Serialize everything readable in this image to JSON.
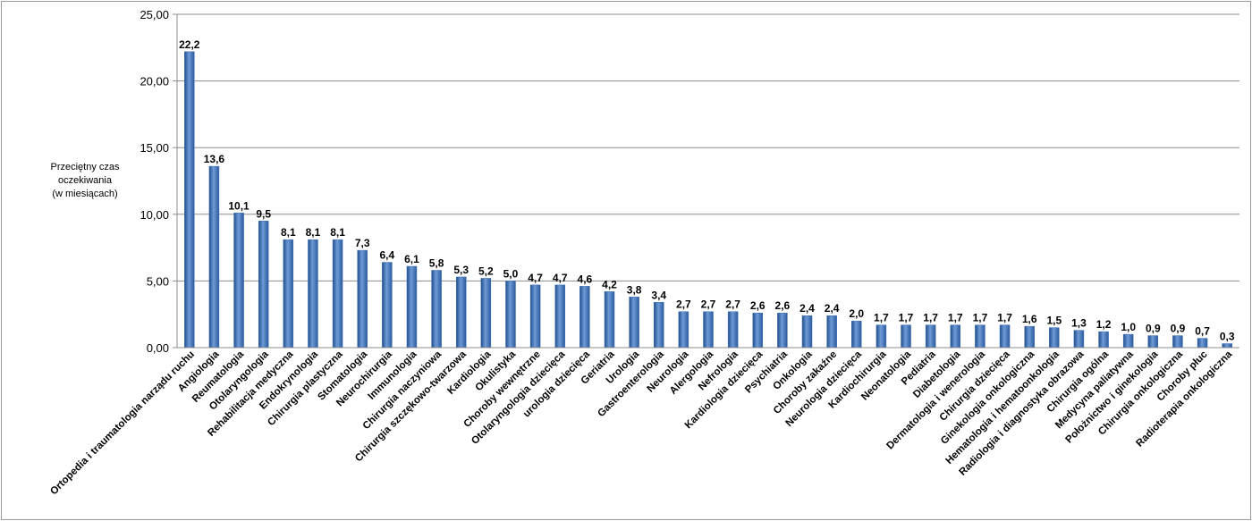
{
  "chart_data": {
    "type": "bar",
    "title": "",
    "xlabel": "",
    "ylabel_lines": [
      "Przeciętny czas",
      "oczekiwania",
      "(w miesiącach)"
    ],
    "ylim": [
      0,
      25
    ],
    "yticks": [
      "0,00",
      "5,00",
      "10,00",
      "15,00",
      "20,00",
      "25,00"
    ],
    "grid": true,
    "legend": "none",
    "bar_color": "#3f6fb5",
    "categories": [
      "Ortopedia i traumatologia narządu ruchu",
      "Angiologia",
      "Reumatologia",
      "Otolaryngologia",
      "Rehabilitacja medyczna",
      "Endokrynologia",
      "Chirurgia plastyczna",
      "Stomatologia",
      "Neurochirurgia",
      "Immunologia",
      "Chirurgia naczyniowa",
      "Chirurgia szczękowo-twarzowa",
      "Kardiologia",
      "Okulistyka",
      "Choroby wewnętrzne",
      "Otolaryngologia dziecięca",
      "urologia dziecięca",
      "Geriatria",
      "Urologia",
      "Gastroenterologia",
      "Neurologia",
      "Alergologia",
      "Nefrologia",
      "Kardiologia dziecięca",
      "Psychiatria",
      "Onkologia",
      "Choroby zakaźne",
      "Neurologia dziecięca",
      "Kardiochirurgia",
      "Neonatologia",
      "Pediatria",
      "Diabetologia",
      "Dermatologia i wenerologia",
      "Chirurgia dziecięca",
      "Ginekologia onkologiczna",
      "Hematologia i hematoonkologia",
      "Radiologia i diagnostyka obrazowa",
      "Chirurgia ogólna",
      "Medycyna paliatywna",
      "Położnictwo i ginekologia",
      "Chirurgia onkologiczna",
      "Choroby płuc",
      "Radioterapia onkologiczna"
    ],
    "values": [
      22.2,
      13.6,
      10.1,
      9.5,
      8.1,
      8.1,
      8.1,
      7.3,
      6.4,
      6.1,
      5.8,
      5.3,
      5.2,
      5.0,
      4.7,
      4.7,
      4.6,
      4.2,
      3.8,
      3.4,
      2.7,
      2.7,
      2.7,
      2.6,
      2.6,
      2.4,
      2.4,
      2.0,
      1.7,
      1.7,
      1.7,
      1.7,
      1.7,
      1.7,
      1.6,
      1.5,
      1.3,
      1.2,
      1.0,
      0.9,
      0.9,
      0.7,
      0.3
    ],
    "value_labels": [
      "22,2",
      "13,6",
      "10,1",
      "9,5",
      "8,1",
      "8,1",
      "8,1",
      "7,3",
      "6,4",
      "6,1",
      "5,8",
      "5,3",
      "5,2",
      "5,0",
      "4,7",
      "4,7",
      "4,6",
      "4,2",
      "3,8",
      "3,4",
      "2,7",
      "2,7",
      "2,7",
      "2,6",
      "2,6",
      "2,4",
      "2,4",
      "2,0",
      "1,7",
      "1,7",
      "1,7",
      "1,7",
      "1,7",
      "1,7",
      "1,6",
      "1,5",
      "1,3",
      "1,2",
      "1,0",
      "0,9",
      "0,9",
      "0,7",
      "0,3"
    ]
  }
}
